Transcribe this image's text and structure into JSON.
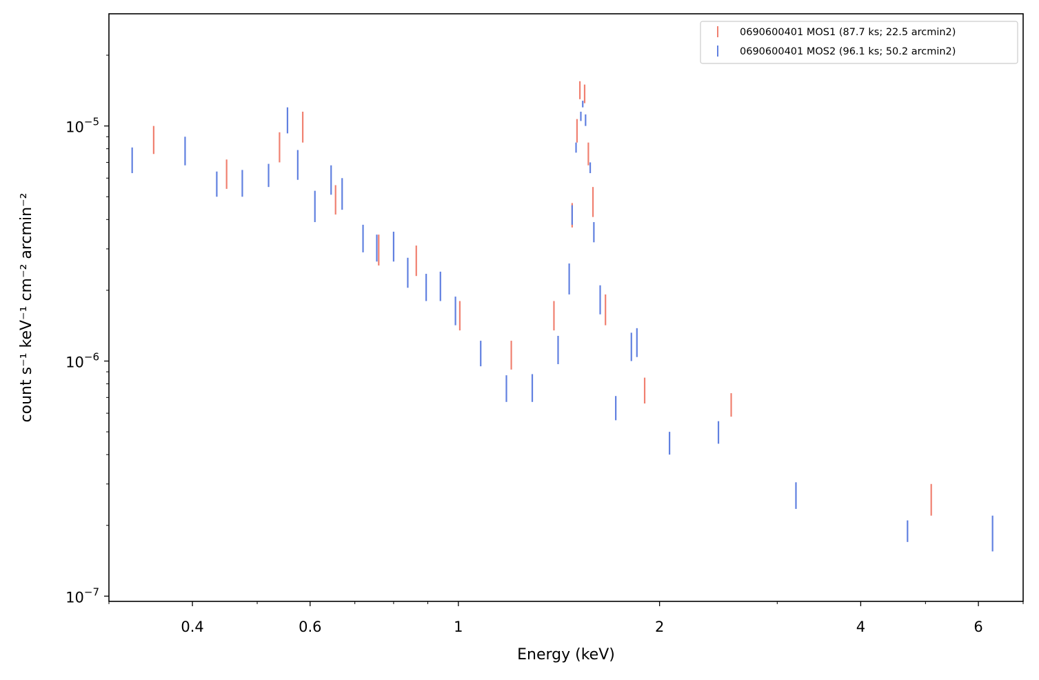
{
  "chart_data": {
    "type": "scatter",
    "style": "vertical error bars",
    "xlabel": "Energy (keV)",
    "ylabel": "count s⁻¹ keV⁻¹ cm⁻² arcmin⁻²",
    "xscale": "log",
    "yscale": "log",
    "xlim": [
      0.3,
      7.0
    ],
    "ylim": [
      9.5e-08,
      3e-05
    ],
    "x_ticks": [
      {
        "value": 0.4,
        "label": "0.4"
      },
      {
        "value": 0.6,
        "label": "0.6"
      },
      {
        "value": 1,
        "label": "1"
      },
      {
        "value": 2,
        "label": "2"
      },
      {
        "value": 4,
        "label": "4"
      },
      {
        "value": 6,
        "label": "6"
      }
    ],
    "y_ticks": [
      {
        "value": 1e-07,
        "base": "10",
        "exp": "−7"
      },
      {
        "value": 1e-06,
        "base": "10",
        "exp": "−6"
      },
      {
        "value": 1e-05,
        "base": "10",
        "exp": "−5"
      }
    ],
    "grid": false,
    "legend_position": "top-right",
    "series": [
      {
        "name": "0690600401 MOS1 (87.7 ks; 22.5 arcmin2)",
        "color": "#f08070",
        "points": [
          {
            "x": 0.35,
            "lo": 7.6e-06,
            "hi": 1e-05
          },
          {
            "x": 0.45,
            "lo": 5.4e-06,
            "hi": 7.2e-06
          },
          {
            "x": 0.54,
            "lo": 7e-06,
            "hi": 9.4e-06
          },
          {
            "x": 0.585,
            "lo": 8.5e-06,
            "hi": 1.15e-05
          },
          {
            "x": 0.655,
            "lo": 4.2e-06,
            "hi": 5.6e-06
          },
          {
            "x": 0.76,
            "lo": 2.55e-06,
            "hi": 3.45e-06
          },
          {
            "x": 0.865,
            "lo": 2.3e-06,
            "hi": 3.1e-06
          },
          {
            "x": 1.005,
            "lo": 1.35e-06,
            "hi": 1.8e-06
          },
          {
            "x": 1.2,
            "lo": 9.2e-07,
            "hi": 1.22e-06
          },
          {
            "x": 1.39,
            "lo": 1.35e-06,
            "hi": 1.8e-06
          },
          {
            "x": 1.48,
            "lo": 3.7e-06,
            "hi": 4.7e-06
          },
          {
            "x": 1.505,
            "lo": 8.5e-06,
            "hi": 1.07e-05
          },
          {
            "x": 1.52,
            "lo": 1.3e-05,
            "hi": 1.55e-05
          },
          {
            "x": 1.545,
            "lo": 1.25e-05,
            "hi": 1.5e-05
          },
          {
            "x": 1.565,
            "lo": 6.8e-06,
            "hi": 8.5e-06
          },
          {
            "x": 1.59,
            "lo": 4.1e-06,
            "hi": 5.5e-06
          },
          {
            "x": 1.66,
            "lo": 1.42e-06,
            "hi": 1.92e-06
          },
          {
            "x": 1.9,
            "lo": 6.6e-07,
            "hi": 8.5e-07
          },
          {
            "x": 2.56,
            "lo": 5.8e-07,
            "hi": 7.3e-07
          },
          {
            "x": 5.1,
            "lo": 2.2e-07,
            "hi": 3e-07
          }
        ]
      },
      {
        "name": "0690600401 MOS2 (96.1 ks; 50.2 arcmin2)",
        "color": "#6080e0",
        "points": [
          {
            "x": 0.325,
            "lo": 6.3e-06,
            "hi": 8.1e-06
          },
          {
            "x": 0.39,
            "lo": 6.8e-06,
            "hi": 9e-06
          },
          {
            "x": 0.435,
            "lo": 5e-06,
            "hi": 6.4e-06
          },
          {
            "x": 0.475,
            "lo": 5e-06,
            "hi": 6.5e-06
          },
          {
            "x": 0.52,
            "lo": 5.5e-06,
            "hi": 6.9e-06
          },
          {
            "x": 0.555,
            "lo": 9.3e-06,
            "hi": 1.2e-05
          },
          {
            "x": 0.575,
            "lo": 5.9e-06,
            "hi": 7.9e-06
          },
          {
            "x": 0.61,
            "lo": 3.9e-06,
            "hi": 5.3e-06
          },
          {
            "x": 0.645,
            "lo": 5.1e-06,
            "hi": 6.8e-06
          },
          {
            "x": 0.67,
            "lo": 4.4e-06,
            "hi": 6e-06
          },
          {
            "x": 0.72,
            "lo": 2.9e-06,
            "hi": 3.8e-06
          },
          {
            "x": 0.755,
            "lo": 2.65e-06,
            "hi": 3.45e-06
          },
          {
            "x": 0.8,
            "lo": 2.65e-06,
            "hi": 3.55e-06
          },
          {
            "x": 0.84,
            "lo": 2.05e-06,
            "hi": 2.75e-06
          },
          {
            "x": 0.895,
            "lo": 1.8e-06,
            "hi": 2.35e-06
          },
          {
            "x": 0.94,
            "lo": 1.8e-06,
            "hi": 2.4e-06
          },
          {
            "x": 0.99,
            "lo": 1.42e-06,
            "hi": 1.88e-06
          },
          {
            "x": 1.08,
            "lo": 9.5e-07,
            "hi": 1.22e-06
          },
          {
            "x": 1.18,
            "lo": 6.7e-07,
            "hi": 8.7e-07
          },
          {
            "x": 1.29,
            "lo": 6.7e-07,
            "hi": 8.8e-07
          },
          {
            "x": 1.41,
            "lo": 9.7e-07,
            "hi": 1.28e-06
          },
          {
            "x": 1.465,
            "lo": 1.92e-06,
            "hi": 2.6e-06
          },
          {
            "x": 1.48,
            "lo": 3.8e-06,
            "hi": 4.6e-06
          },
          {
            "x": 1.5,
            "lo": 7.7e-06,
            "hi": 8.5e-06
          },
          {
            "x": 1.525,
            "lo": 1.05e-05,
            "hi": 1.15e-05
          },
          {
            "x": 1.535,
            "lo": 1.2e-05,
            "hi": 1.28e-05
          },
          {
            "x": 1.55,
            "lo": 1e-05,
            "hi": 1.12e-05
          },
          {
            "x": 1.575,
            "lo": 6.3e-06,
            "hi": 7e-06
          },
          {
            "x": 1.595,
            "lo": 3.2e-06,
            "hi": 3.9e-06
          },
          {
            "x": 1.63,
            "lo": 1.58e-06,
            "hi": 2.1e-06
          },
          {
            "x": 1.72,
            "lo": 5.6e-07,
            "hi": 7.1e-07
          },
          {
            "x": 1.815,
            "lo": 1e-06,
            "hi": 1.32e-06
          },
          {
            "x": 1.85,
            "lo": 1.04e-06,
            "hi": 1.38e-06
          },
          {
            "x": 2.07,
            "lo": 4e-07,
            "hi": 5e-07
          },
          {
            "x": 2.45,
            "lo": 4.45e-07,
            "hi": 5.55e-07
          },
          {
            "x": 3.2,
            "lo": 2.35e-07,
            "hi": 3.05e-07
          },
          {
            "x": 4.7,
            "lo": 1.7e-07,
            "hi": 2.1e-07
          },
          {
            "x": 6.3,
            "lo": 1.55e-07,
            "hi": 2.2e-07
          }
        ]
      }
    ]
  }
}
